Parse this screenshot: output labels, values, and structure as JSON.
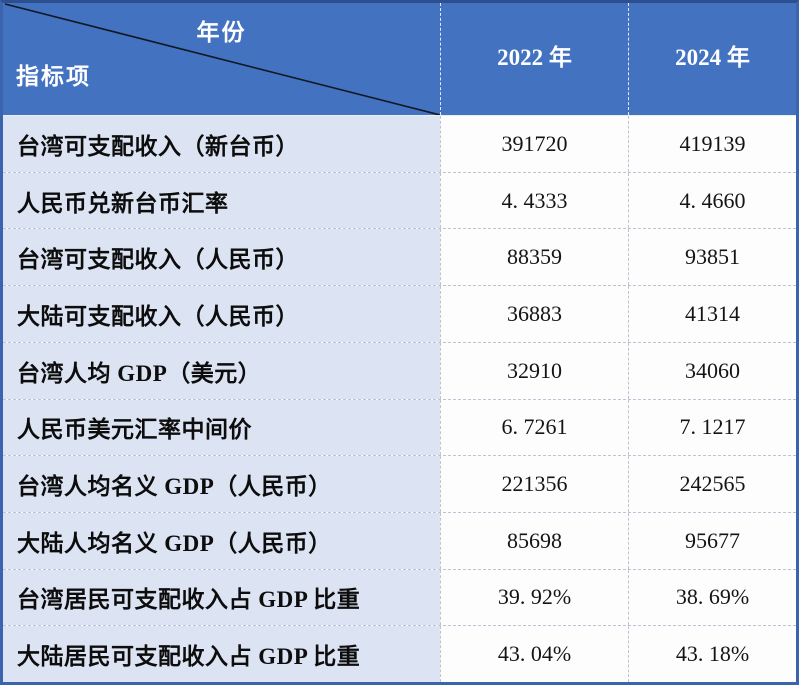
{
  "chart_data": {
    "type": "table",
    "header": {
      "corner_top": "年份",
      "corner_bottom": "指标项",
      "columns": [
        "2022 年",
        "2024 年"
      ]
    },
    "rows": [
      {
        "label": "台湾可支配收入（新台币）",
        "values": [
          "391720",
          "419139"
        ]
      },
      {
        "label": "人民币兑新台币汇率",
        "values": [
          "4. 4333",
          "4. 4660"
        ]
      },
      {
        "label": "台湾可支配收入（人民币）",
        "values": [
          "88359",
          "93851"
        ]
      },
      {
        "label": "大陆可支配收入（人民币）",
        "values": [
          "36883",
          "41314"
        ]
      },
      {
        "label": "台湾人均 GDP（美元）",
        "values": [
          "32910",
          "34060"
        ]
      },
      {
        "label": "人民币美元汇率中间价",
        "values": [
          "6. 7261",
          "7. 1217"
        ]
      },
      {
        "label": "台湾人均名义 GDP（人民币）",
        "values": [
          "221356",
          "242565"
        ]
      },
      {
        "label": "大陆人均名义 GDP（人民币）",
        "values": [
          "85698",
          "95677"
        ]
      },
      {
        "label": "台湾居民可支配收入占 GDP 比重",
        "values": [
          "39. 92%",
          "38. 69%"
        ]
      },
      {
        "label": "大陆居民可支配收入占 GDP 比重",
        "values": [
          "43. 04%",
          "43. 18%"
        ]
      }
    ],
    "layout": {
      "legend": "none",
      "grid": "dashed inner separators",
      "header_position": "top row + diagonal split corner cell"
    },
    "colors": {
      "header_bg": "#4372c1",
      "header_text": "#ffffff",
      "label_cell_bg": "#dce3f3",
      "value_cell_bg": "#fdfdfd",
      "outer_border": "#3a64ad",
      "body_text": "#141414",
      "diagonal_line": "#101826"
    }
  }
}
